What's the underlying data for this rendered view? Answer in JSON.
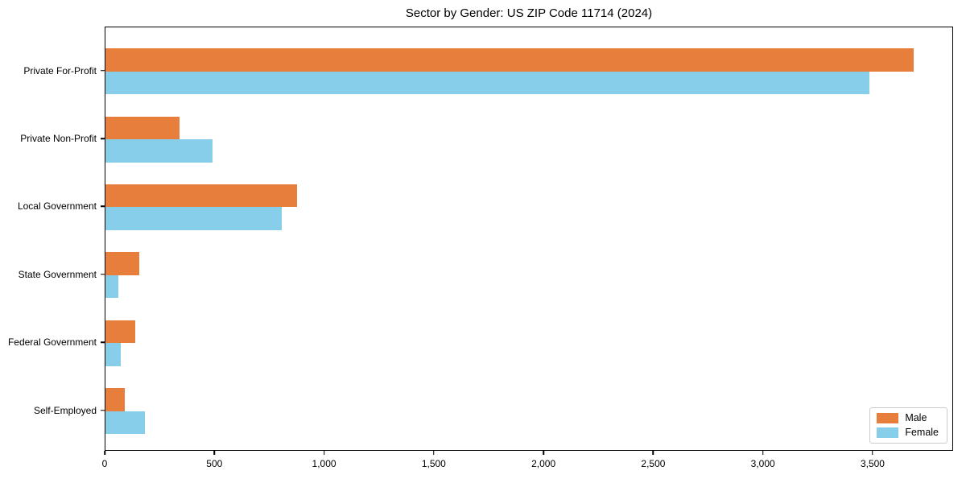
{
  "chart_data": {
    "type": "bar",
    "orientation": "horizontal",
    "title": "Sector by Gender: US ZIP Code 11714 (2024)",
    "categories": [
      "Private For-Profit",
      "Private Non-Profit",
      "Local Government",
      "State Government",
      "Federal Government",
      "Self-Employed"
    ],
    "series": [
      {
        "name": "Male",
        "color": "#e87e3c",
        "values": [
          3690,
          340,
          875,
          155,
          135,
          90
        ]
      },
      {
        "name": "Female",
        "color": "#87ceeb",
        "values": [
          3490,
          490,
          805,
          60,
          70,
          180
        ]
      }
    ],
    "xlabel": "",
    "ylabel": "",
    "xlim": [
      0,
      3867
    ],
    "xticks": [
      0,
      500,
      1000,
      1500,
      2000,
      2500,
      3000,
      3500
    ],
    "xtick_labels": [
      "0",
      "500",
      "1,000",
      "1,500",
      "2,000",
      "2,500",
      "3,000",
      "3,500"
    ],
    "legend_position": "lower right",
    "grid": false,
    "plot_bg_color": "#ffffff",
    "axis_color": "#000000"
  }
}
